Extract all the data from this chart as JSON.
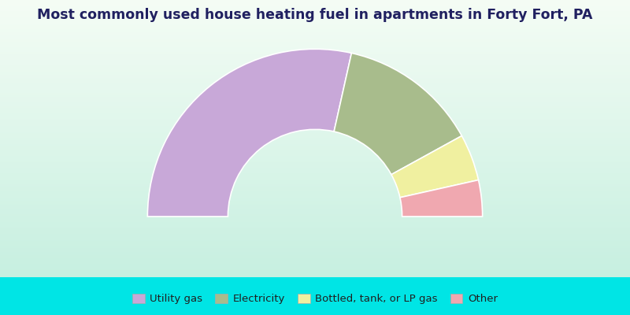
{
  "title": "Most commonly used house heating fuel in apartments in Forty Fort, PA",
  "segments": [
    {
      "label": "Utility gas",
      "value": 57.0,
      "color": "#c8a8d8"
    },
    {
      "label": "Electricity",
      "value": 27.0,
      "color": "#a8bc8c"
    },
    {
      "label": "Bottled, tank, or LP gas",
      "value": 9.0,
      "color": "#f0f0a0"
    },
    {
      "label": "Other",
      "value": 7.0,
      "color": "#f0a8b0"
    }
  ],
  "bg_color_top": "#e8f5e8",
  "bg_color_bottom": "#c8f0e0",
  "legend_bg": "#00e5e5",
  "title_color": "#202060",
  "figsize": [
    8.0,
    4.0
  ],
  "dpi": 100
}
